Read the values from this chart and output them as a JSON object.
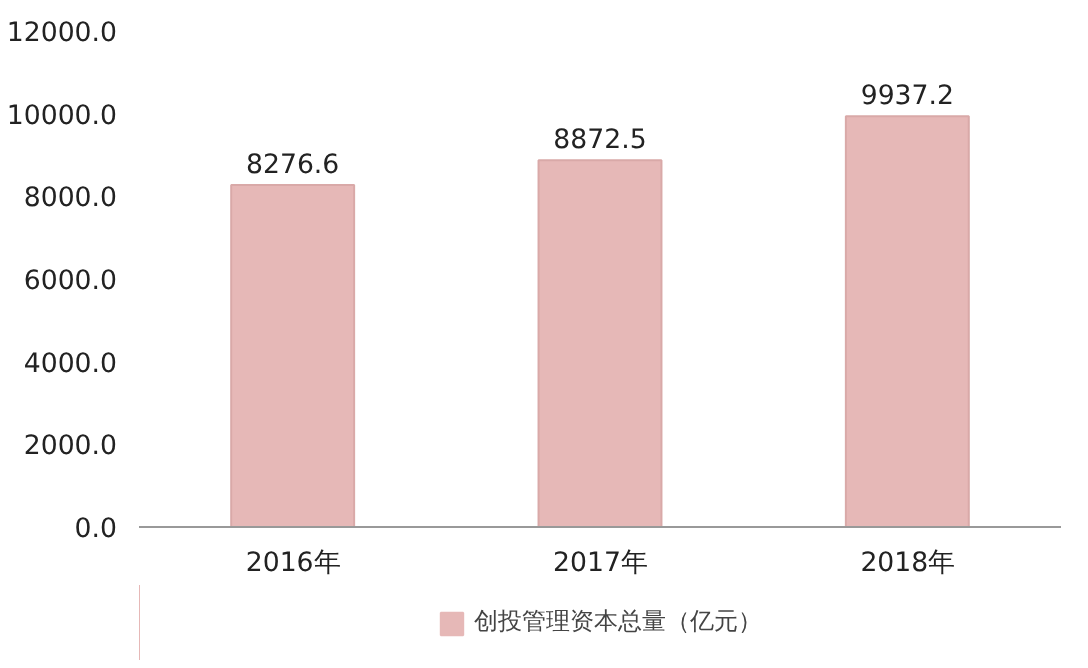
{
  "chart_data": {
    "type": "bar",
    "categories": [
      "2016年",
      "2017年",
      "2018年"
    ],
    "series": [
      {
        "name": "创投管理资本总量（亿元）",
        "color": "#e6b8b7",
        "values": [
          8276.6,
          8872.5,
          9937.2
        ]
      }
    ],
    "ylim": [
      0,
      12000
    ],
    "yticks": [
      {
        "value": 0,
        "label": "0.0"
      },
      {
        "value": 2000,
        "label": "2000.0"
      },
      {
        "value": 4000,
        "label": "4000.0"
      },
      {
        "value": 6000,
        "label": "6000.0"
      },
      {
        "value": 8000,
        "label": "8000.0"
      },
      {
        "value": 10000,
        "label": "10000.0"
      },
      {
        "value": 12000,
        "label": "12000.0"
      }
    ],
    "data_labels": true,
    "legend": "bottom",
    "grid": false
  }
}
